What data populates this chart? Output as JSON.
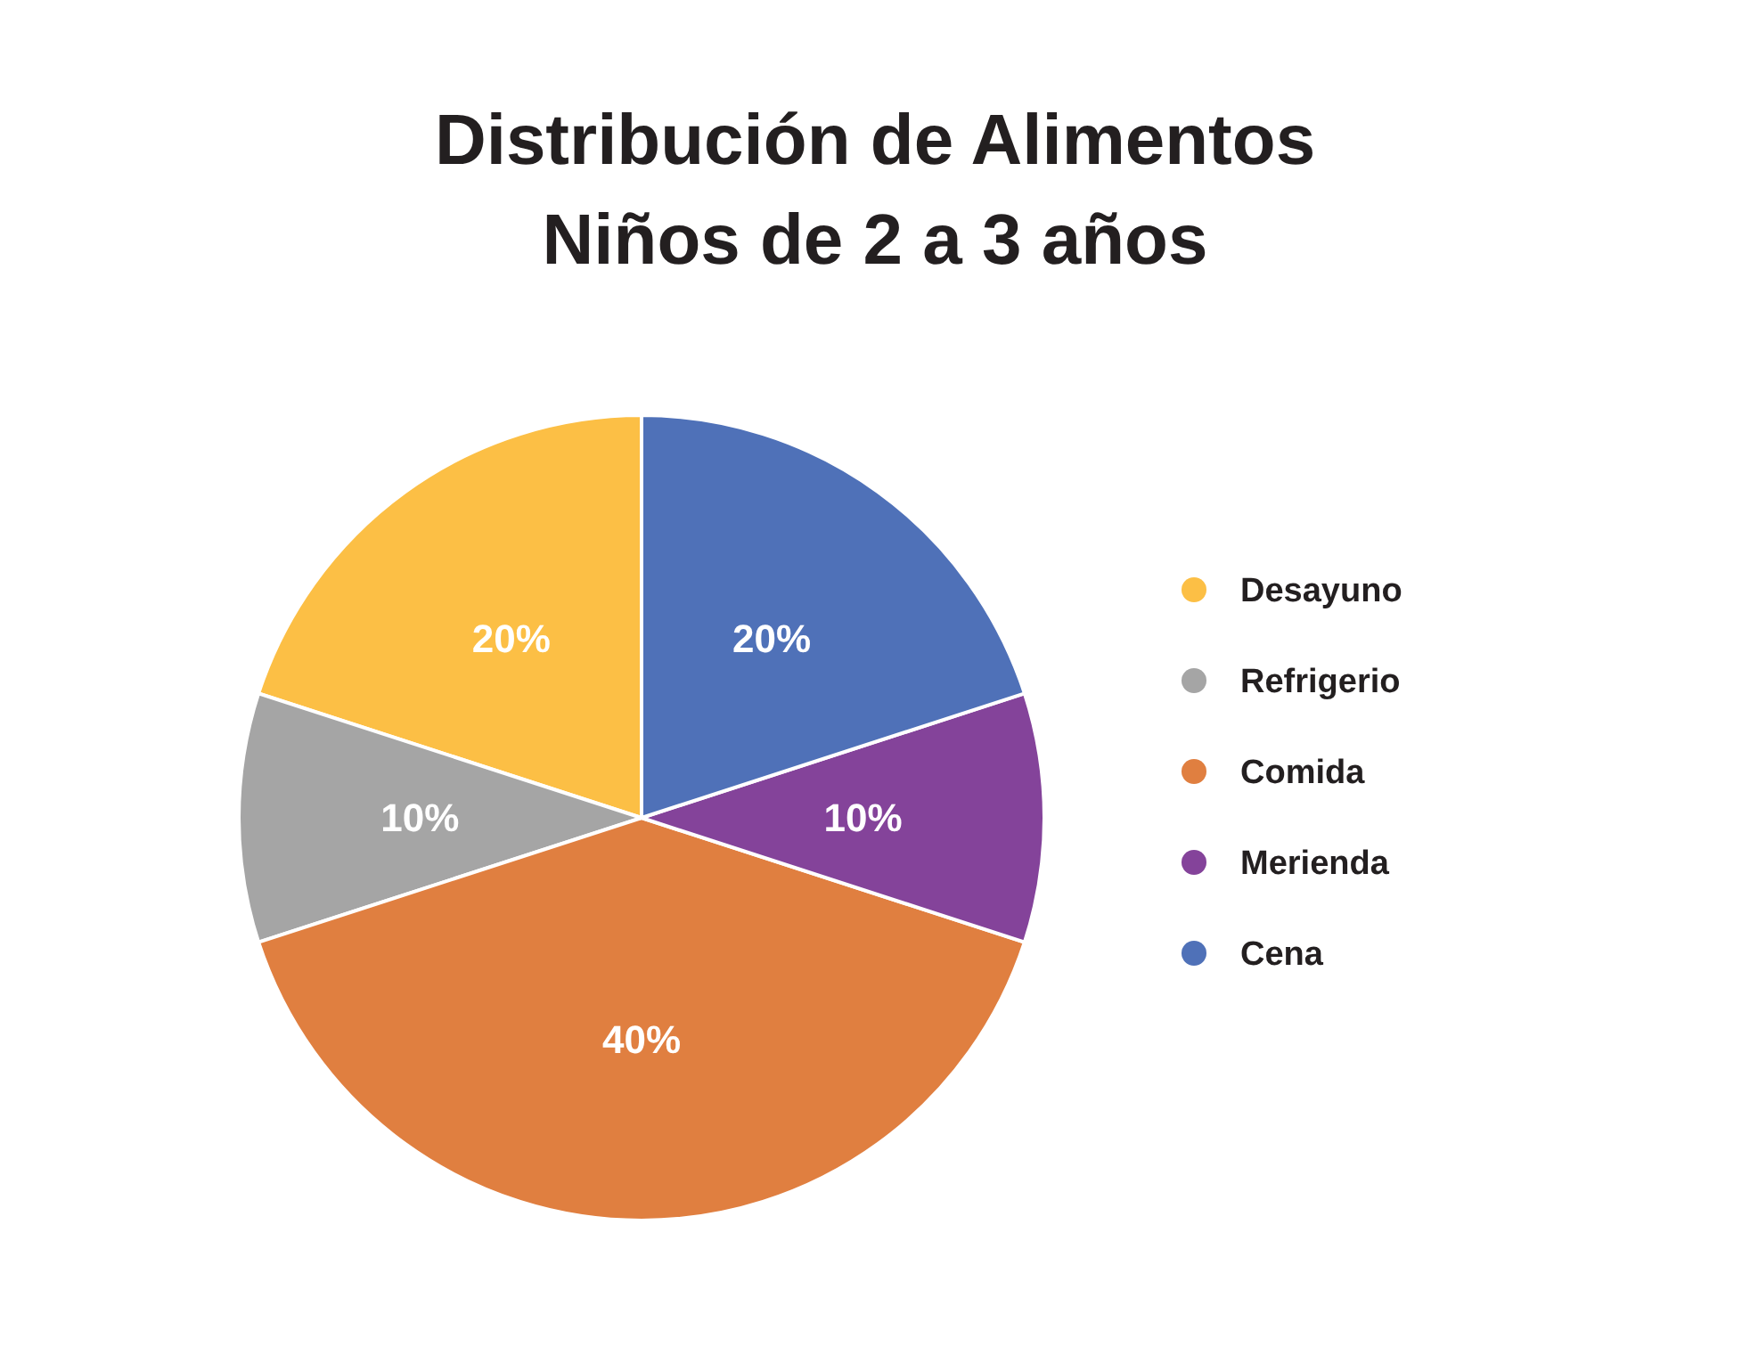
{
  "chart_data": {
    "type": "pie",
    "title": "Distribución de Alimentos\nNiños de 2 a 3 años",
    "categories": [
      "Desayuno",
      "Refrigerio",
      "Comida",
      "Merienda",
      "Cena"
    ],
    "values": [
      20,
      10,
      40,
      10,
      20
    ],
    "value_labels": [
      "20%",
      "10%",
      "40%",
      "10%",
      "20%"
    ],
    "colors": [
      "#fcbf45",
      "#a5a5a5",
      "#e07f40",
      "#84439a",
      "#4f71b8"
    ],
    "legend": "right"
  }
}
